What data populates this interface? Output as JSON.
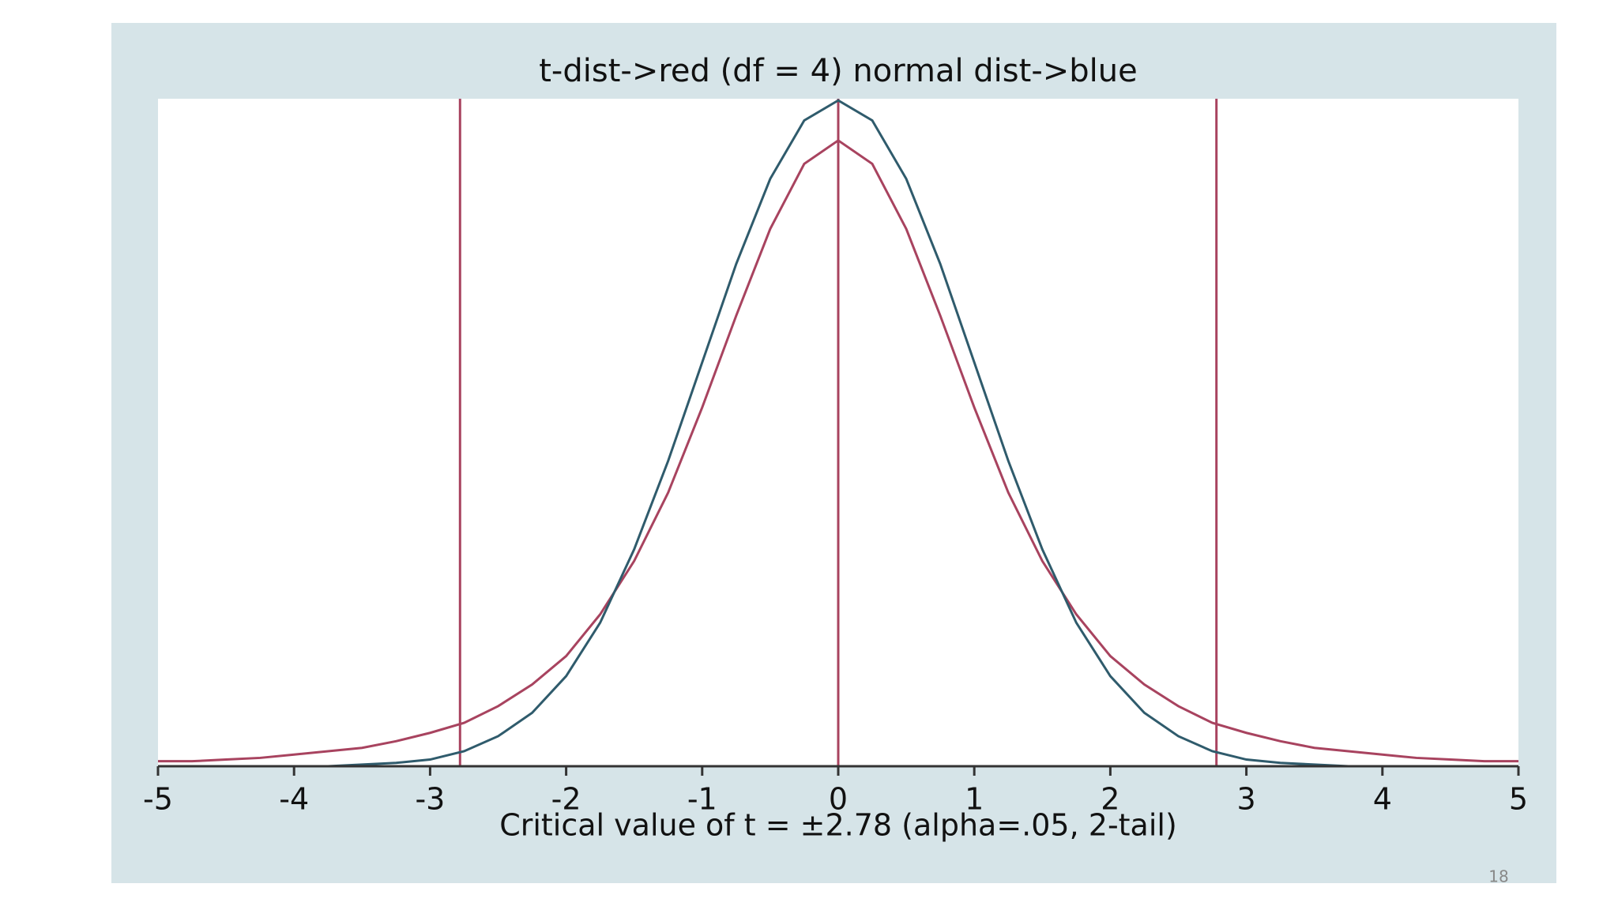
{
  "chart_data": {
    "type": "line",
    "title": "t-dist->red (df = 4)  normal dist->blue",
    "x_label": "Critical value of t = ±2.78  (alpha=.05, 2-tail)",
    "page_number": "18",
    "x": [
      -5,
      -4.75,
      -4.5,
      -4.25,
      -4,
      -3.75,
      -3.5,
      -3.25,
      -3,
      -2.75,
      -2.5,
      -2.25,
      -2,
      -1.75,
      -1.5,
      -1.25,
      -1,
      -0.75,
      -0.5,
      -0.25,
      0,
      0.25,
      0.5,
      0.75,
      1,
      1.25,
      1.5,
      1.75,
      2,
      2.25,
      2.5,
      2.75,
      3,
      3.25,
      3.5,
      3.75,
      4,
      4.25,
      4.5,
      4.75,
      5
    ],
    "series": [
      {
        "name": "t-dist",
        "color": "#a8435f",
        "values": [
          0.003,
          0.003,
          0.004,
          0.005,
          0.007,
          0.009,
          0.011,
          0.015,
          0.02,
          0.026,
          0.036,
          0.049,
          0.066,
          0.091,
          0.123,
          0.164,
          0.215,
          0.27,
          0.322,
          0.361,
          0.375,
          0.361,
          0.322,
          0.27,
          0.215,
          0.164,
          0.123,
          0.091,
          0.066,
          0.049,
          0.036,
          0.026,
          0.02,
          0.015,
          0.011,
          0.009,
          0.007,
          0.005,
          0.004,
          0.003,
          0.003
        ]
      },
      {
        "name": "normal dist",
        "color": "#2f5b6c",
        "values": [
          0,
          0,
          0,
          0,
          0,
          0,
          0.001,
          0.002,
          0.004,
          0.009,
          0.018,
          0.032,
          0.054,
          0.086,
          0.13,
          0.183,
          0.242,
          0.301,
          0.352,
          0.387,
          0.399,
          0.387,
          0.352,
          0.301,
          0.242,
          0.183,
          0.13,
          0.086,
          0.054,
          0.032,
          0.018,
          0.009,
          0.004,
          0.002,
          0.001,
          0,
          0,
          0,
          0,
          0,
          0
        ]
      }
    ],
    "vlines": [
      -2.78,
      0,
      2.78
    ],
    "vline_color": "#a8435f",
    "xlim": [
      -5,
      5
    ],
    "ylim": [
      0,
      0.4
    ],
    "xticks": [
      -5,
      -4,
      -3,
      -2,
      -1,
      0,
      1,
      2,
      3,
      4,
      5
    ]
  }
}
